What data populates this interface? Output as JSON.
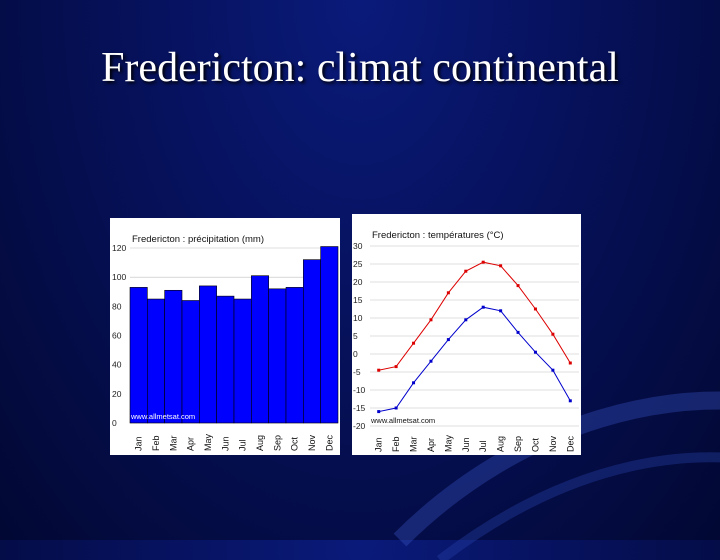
{
  "slide": {
    "title": "Fredericton: climat continental"
  },
  "colors": {
    "bar": "#0000ff",
    "max_line": "#dd0000",
    "min_line": "#0000cc",
    "background": "#06115a"
  },
  "chart_data": [
    {
      "type": "bar",
      "title": "Fredericton : précipitation (mm)",
      "watermark": "www.allmetsat.com",
      "categories": [
        "Jan",
        "Feb",
        "Mar",
        "Apr",
        "May",
        "Jun",
        "Jul",
        "Aug",
        "Sep",
        "Oct",
        "Nov",
        "Dec"
      ],
      "values": [
        93,
        85,
        91,
        84,
        94,
        87,
        85,
        101,
        92,
        93,
        112,
        121
      ],
      "yticks": [
        "120",
        "100",
        "80",
        "60",
        "40",
        "20",
        "0"
      ],
      "ylim": [
        0,
        120
      ],
      "grid": true
    },
    {
      "type": "line",
      "title": "Fredericton : températures (°C)",
      "watermark": "www.allmetsat.com",
      "categories": [
        "Jan",
        "Feb",
        "Mar",
        "Apr",
        "May",
        "Jun",
        "Jul",
        "Aug",
        "Sep",
        "Oct",
        "Nov",
        "Dec"
      ],
      "series": [
        {
          "values": [
            -4.5,
            -3.5,
            3,
            9.5,
            17,
            23,
            25.5,
            24.5,
            19,
            12.5,
            5.5,
            -2.5
          ]
        },
        {
          "values": [
            -16,
            -15,
            -8,
            -2,
            4,
            9.5,
            13,
            12,
            6,
            0.5,
            -4.5,
            -13
          ]
        }
      ],
      "yticks": [
        "30",
        "25",
        "20",
        "15",
        "10",
        "5",
        "0",
        "-5",
        "-10",
        "-15",
        "-20"
      ],
      "ylim": [
        -20,
        30
      ],
      "grid": true
    }
  ]
}
